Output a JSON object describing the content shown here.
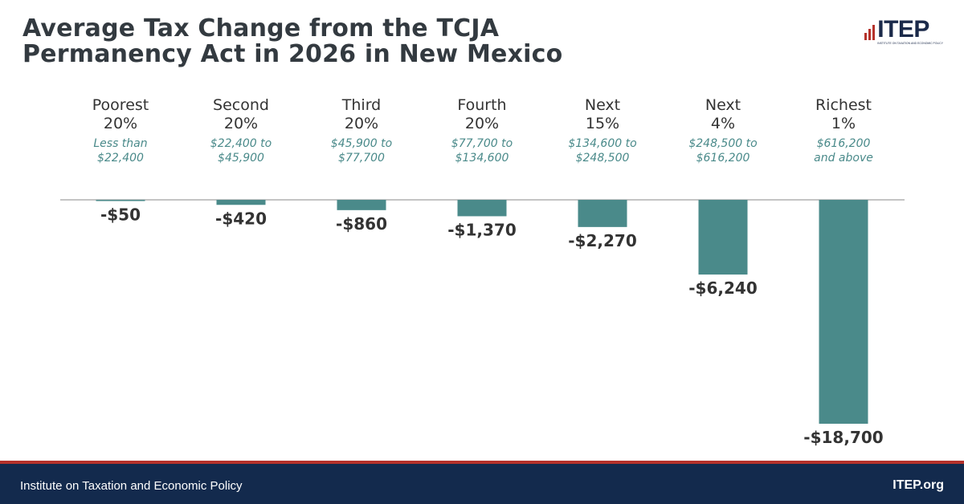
{
  "title_line1": "Average Tax Change from the TCJA",
  "title_line2": "Permanency Act in 2026 in New Mexico",
  "logo": {
    "text": "ITEP",
    "subtitle": "INSTITUTE ON TAXATION AND ECONOMIC POLICY",
    "bar_color": "#b5322b"
  },
  "footer": {
    "left": "Institute on Taxation and Economic Policy",
    "right": "ITEP.org"
  },
  "colors": {
    "bar": "#4a8a8a",
    "range_text": "#4a8a8a",
    "group_text": "#333333",
    "value_text": "#333333",
    "axis": "#888888",
    "footer_bg": "#132a4d",
    "footer_border": "#b5322b"
  },
  "chart_data": {
    "type": "bar",
    "categories": [
      {
        "line1": "Poorest",
        "line2": "20%",
        "range1": "Less than",
        "range2": "$22,400"
      },
      {
        "line1": "Second",
        "line2": "20%",
        "range1": "$22,400 to",
        "range2": "$45,900"
      },
      {
        "line1": "Third",
        "line2": "20%",
        "range1": "$45,900 to",
        "range2": "$77,700"
      },
      {
        "line1": "Fourth",
        "line2": "20%",
        "range1": "$77,700 to",
        "range2": "$134,600"
      },
      {
        "line1": "Next",
        "line2": "15%",
        "range1": "$134,600 to",
        "range2": "$248,500"
      },
      {
        "line1": "Next",
        "line2": "4%",
        "range1": "$248,500 to",
        "range2": "$616,200"
      },
      {
        "line1": "Richest",
        "line2": "1%",
        "range1": "$616,200",
        "range2": "and above"
      }
    ],
    "values": [
      -50,
      -420,
      -860,
      -1370,
      -2270,
      -6240,
      -18700
    ],
    "labels": [
      "-$50",
      "-$420",
      "-$860",
      "-$1,370",
      "-$2,270",
      "-$6,240",
      "-$18,700"
    ],
    "ylim": [
      -18700,
      0
    ],
    "xlabel": "",
    "ylabel": "",
    "grid": false,
    "legend": "none"
  }
}
